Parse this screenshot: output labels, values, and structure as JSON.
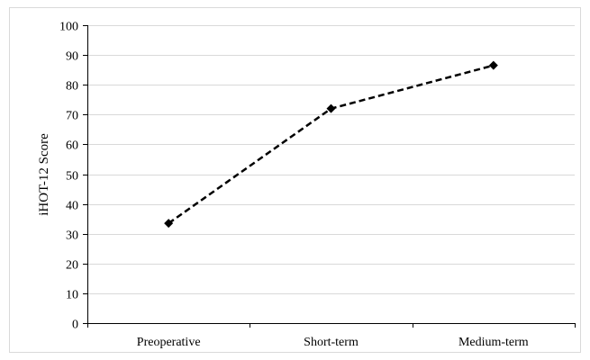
{
  "chart_data": {
    "type": "line",
    "categories": [
      "Preoperative",
      "Short-term",
      "Medium-term"
    ],
    "series": [
      {
        "values": [
          33.5,
          72,
          86.5
        ],
        "line_style": "dashed",
        "marker": "diamond",
        "color": "#000000"
      }
    ],
    "title": "",
    "xlabel": "",
    "ylabel": "iHOT-12 Score",
    "ylim": [
      0,
      100
    ],
    "y_ticks": [
      0,
      10,
      20,
      30,
      40,
      50,
      60,
      70,
      80,
      90,
      100
    ],
    "grid": "horizontal",
    "legend": "none"
  }
}
